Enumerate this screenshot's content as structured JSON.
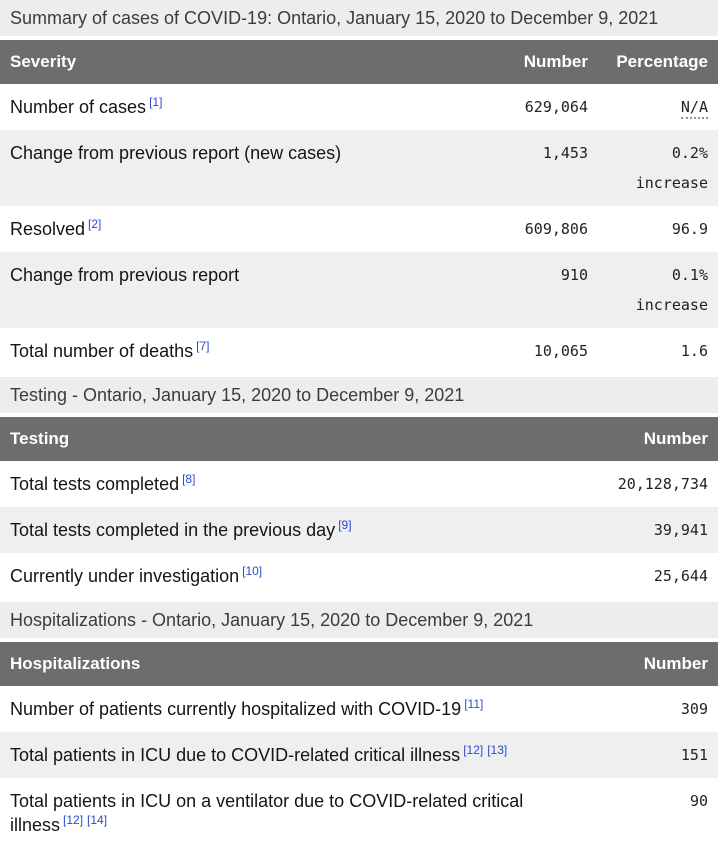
{
  "colors": {
    "header_bg": "#6d6d6d",
    "header_text": "#ffffff",
    "caption_bg": "#ededed",
    "stripe_bg": "#efefef",
    "link_blue": "#2b4bcf"
  },
  "tables": [
    {
      "caption": "Summary of cases of COVID-19: Ontario, January 15, 2020 to December 9, 2021",
      "columns": [
        "Severity",
        "Number",
        "Percentage"
      ],
      "rows": [
        {
          "label": "Number of cases",
          "refs": [
            "[1]"
          ],
          "number": "629,064",
          "percentage": "N/A"
        },
        {
          "label": "Change from previous report (new cases)",
          "refs": [],
          "number": "1,453",
          "percentage": "0.2%",
          "percentage_note": "increase"
        },
        {
          "label": "Resolved",
          "refs": [
            "[2]"
          ],
          "number": "609,806",
          "percentage": "96.9"
        },
        {
          "label": "Change from previous report",
          "refs": [],
          "number": "910",
          "percentage": "0.1%",
          "percentage_note": "increase"
        },
        {
          "label": "Total number of deaths",
          "refs": [
            "[7]"
          ],
          "number": "10,065",
          "percentage": "1.6"
        }
      ]
    },
    {
      "caption": "Testing - Ontario, January 15, 2020 to December 9, 2021",
      "columns": [
        "Testing",
        "Number"
      ],
      "rows": [
        {
          "label": "Total tests completed",
          "refs": [
            "[8]"
          ],
          "number": "20,128,734"
        },
        {
          "label": "Total tests completed in the previous day",
          "refs": [
            "[9]"
          ],
          "number": "39,941"
        },
        {
          "label": "Currently under investigation",
          "refs": [
            "[10]"
          ],
          "number": "25,644"
        }
      ]
    },
    {
      "caption": "Hospitalizations - Ontario, January 15, 2020 to December 9, 2021",
      "columns": [
        "Hospitalizations",
        "Number"
      ],
      "rows": [
        {
          "label": "Number of patients currently hospitalized with COVID-19",
          "refs": [
            "[11]"
          ],
          "number": "309"
        },
        {
          "label": "Total patients in ICU due to COVID-related critical illness",
          "refs": [
            "[12]",
            "[13]"
          ],
          "number": "151"
        },
        {
          "label": "Total patients in ICU on a ventilator due to COVID-related critical illness",
          "refs": [
            "[12]",
            "[14]"
          ],
          "number": "90"
        }
      ]
    }
  ]
}
